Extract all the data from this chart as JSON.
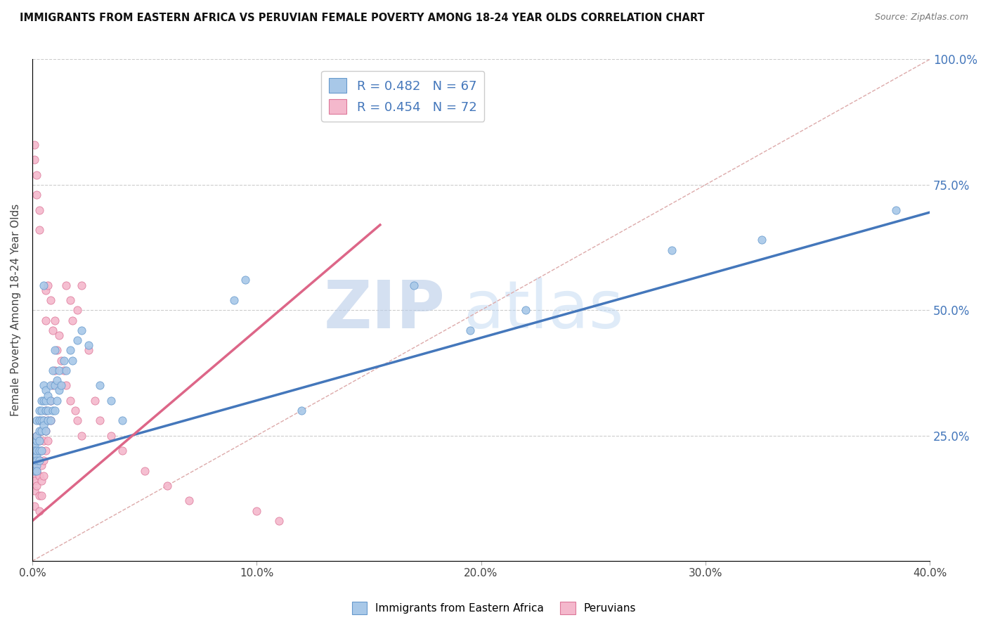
{
  "title": "IMMIGRANTS FROM EASTERN AFRICA VS PERUVIAN FEMALE POVERTY AMONG 18-24 YEAR OLDS CORRELATION CHART",
  "source": "Source: ZipAtlas.com",
  "ylabel": "Female Poverty Among 18-24 Year Olds",
  "watermark_zip": "ZIP",
  "watermark_atlas": "atlas",
  "xlim": [
    0.0,
    0.4
  ],
  "ylim": [
    0.0,
    1.0
  ],
  "xtick_labels": [
    "0.0%",
    "10.0%",
    "20.0%",
    "30.0%",
    "40.0%"
  ],
  "xtick_vals": [
    0.0,
    0.1,
    0.2,
    0.3,
    0.4
  ],
  "ytick_labels_right": [
    "25.0%",
    "50.0%",
    "75.0%",
    "100.0%"
  ],
  "ytick_vals_right": [
    0.25,
    0.5,
    0.75,
    1.0
  ],
  "blue_R": 0.482,
  "blue_N": 67,
  "pink_R": 0.454,
  "pink_N": 72,
  "blue_color": "#a8c8e8",
  "pink_color": "#f4b8cc",
  "blue_edge_color": "#6699cc",
  "pink_edge_color": "#dd7799",
  "blue_line_color": "#4477bb",
  "pink_line_color": "#dd6688",
  "legend_label_blue": "Immigrants from Eastern Africa",
  "legend_label_pink": "Peruvians",
  "blue_trend": [
    0.0,
    0.195,
    0.4,
    0.695
  ],
  "pink_trend": [
    0.0,
    0.08,
    0.155,
    0.67
  ],
  "ref_line_color": "#ddaaaa",
  "blue_scatter": [
    [
      0.001,
      0.2
    ],
    [
      0.001,
      0.23
    ],
    [
      0.001,
      0.18
    ],
    [
      0.001,
      0.22
    ],
    [
      0.002,
      0.21
    ],
    [
      0.002,
      0.19
    ],
    [
      0.002,
      0.24
    ],
    [
      0.002,
      0.2
    ],
    [
      0.002,
      0.22
    ],
    [
      0.002,
      0.25
    ],
    [
      0.002,
      0.18
    ],
    [
      0.002,
      0.28
    ],
    [
      0.003,
      0.26
    ],
    [
      0.003,
      0.22
    ],
    [
      0.003,
      0.3
    ],
    [
      0.003,
      0.2
    ],
    [
      0.003,
      0.24
    ],
    [
      0.003,
      0.28
    ],
    [
      0.004,
      0.32
    ],
    [
      0.004,
      0.26
    ],
    [
      0.004,
      0.22
    ],
    [
      0.004,
      0.28
    ],
    [
      0.004,
      0.3
    ],
    [
      0.005,
      0.35
    ],
    [
      0.005,
      0.28
    ],
    [
      0.005,
      0.32
    ],
    [
      0.005,
      0.27
    ],
    [
      0.005,
      0.55
    ],
    [
      0.006,
      0.3
    ],
    [
      0.006,
      0.34
    ],
    [
      0.006,
      0.26
    ],
    [
      0.006,
      0.32
    ],
    [
      0.007,
      0.28
    ],
    [
      0.007,
      0.33
    ],
    [
      0.007,
      0.3
    ],
    [
      0.008,
      0.32
    ],
    [
      0.008,
      0.28
    ],
    [
      0.008,
      0.35
    ],
    [
      0.009,
      0.3
    ],
    [
      0.009,
      0.38
    ],
    [
      0.01,
      0.35
    ],
    [
      0.01,
      0.3
    ],
    [
      0.01,
      0.42
    ],
    [
      0.011,
      0.32
    ],
    [
      0.011,
      0.36
    ],
    [
      0.012,
      0.38
    ],
    [
      0.012,
      0.34
    ],
    [
      0.013,
      0.35
    ],
    [
      0.014,
      0.4
    ],
    [
      0.015,
      0.38
    ],
    [
      0.017,
      0.42
    ],
    [
      0.018,
      0.4
    ],
    [
      0.02,
      0.44
    ],
    [
      0.022,
      0.46
    ],
    [
      0.025,
      0.43
    ],
    [
      0.03,
      0.35
    ],
    [
      0.035,
      0.32
    ],
    [
      0.04,
      0.28
    ],
    [
      0.09,
      0.52
    ],
    [
      0.095,
      0.56
    ],
    [
      0.12,
      0.3
    ],
    [
      0.17,
      0.55
    ],
    [
      0.195,
      0.46
    ],
    [
      0.22,
      0.5
    ],
    [
      0.285,
      0.62
    ],
    [
      0.325,
      0.64
    ],
    [
      0.385,
      0.7
    ]
  ],
  "pink_scatter": [
    [
      0.001,
      0.2
    ],
    [
      0.001,
      0.17
    ],
    [
      0.001,
      0.14
    ],
    [
      0.001,
      0.11
    ],
    [
      0.001,
      0.22
    ],
    [
      0.001,
      0.19
    ],
    [
      0.001,
      0.16
    ],
    [
      0.001,
      0.8
    ],
    [
      0.001,
      0.83
    ],
    [
      0.002,
      0.77
    ],
    [
      0.002,
      0.73
    ],
    [
      0.002,
      0.25
    ],
    [
      0.002,
      0.22
    ],
    [
      0.002,
      0.18
    ],
    [
      0.002,
      0.15
    ],
    [
      0.003,
      0.7
    ],
    [
      0.003,
      0.66
    ],
    [
      0.003,
      0.28
    ],
    [
      0.003,
      0.24
    ],
    [
      0.003,
      0.2
    ],
    [
      0.003,
      0.17
    ],
    [
      0.003,
      0.13
    ],
    [
      0.003,
      0.1
    ],
    [
      0.004,
      0.26
    ],
    [
      0.004,
      0.22
    ],
    [
      0.004,
      0.19
    ],
    [
      0.004,
      0.16
    ],
    [
      0.004,
      0.13
    ],
    [
      0.005,
      0.28
    ],
    [
      0.005,
      0.24
    ],
    [
      0.005,
      0.2
    ],
    [
      0.005,
      0.17
    ],
    [
      0.006,
      0.54
    ],
    [
      0.006,
      0.48
    ],
    [
      0.006,
      0.3
    ],
    [
      0.006,
      0.26
    ],
    [
      0.006,
      0.22
    ],
    [
      0.007,
      0.55
    ],
    [
      0.007,
      0.28
    ],
    [
      0.007,
      0.24
    ],
    [
      0.008,
      0.52
    ],
    [
      0.008,
      0.32
    ],
    [
      0.008,
      0.28
    ],
    [
      0.009,
      0.46
    ],
    [
      0.009,
      0.35
    ],
    [
      0.01,
      0.48
    ],
    [
      0.01,
      0.38
    ],
    [
      0.011,
      0.42
    ],
    [
      0.012,
      0.45
    ],
    [
      0.012,
      0.35
    ],
    [
      0.013,
      0.4
    ],
    [
      0.014,
      0.38
    ],
    [
      0.015,
      0.55
    ],
    [
      0.015,
      0.35
    ],
    [
      0.017,
      0.52
    ],
    [
      0.017,
      0.32
    ],
    [
      0.018,
      0.48
    ],
    [
      0.019,
      0.3
    ],
    [
      0.02,
      0.5
    ],
    [
      0.02,
      0.28
    ],
    [
      0.022,
      0.55
    ],
    [
      0.022,
      0.25
    ],
    [
      0.025,
      0.42
    ],
    [
      0.028,
      0.32
    ],
    [
      0.03,
      0.28
    ],
    [
      0.035,
      0.25
    ],
    [
      0.04,
      0.22
    ],
    [
      0.05,
      0.18
    ],
    [
      0.06,
      0.15
    ],
    [
      0.07,
      0.12
    ],
    [
      0.1,
      0.1
    ],
    [
      0.11,
      0.08
    ]
  ]
}
